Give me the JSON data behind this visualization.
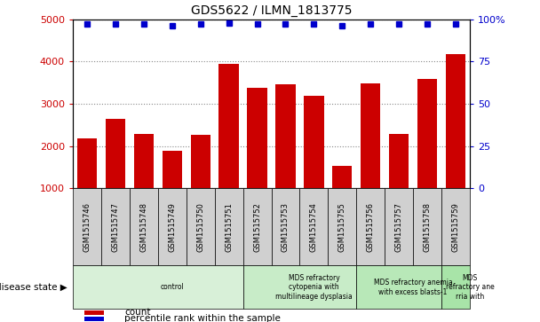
{
  "title": "GDS5622 / ILMN_1813775",
  "samples": [
    "GSM1515746",
    "GSM1515747",
    "GSM1515748",
    "GSM1515749",
    "GSM1515750",
    "GSM1515751",
    "GSM1515752",
    "GSM1515753",
    "GSM1515754",
    "GSM1515755",
    "GSM1515756",
    "GSM1515757",
    "GSM1515758",
    "GSM1515759"
  ],
  "counts": [
    2175,
    2640,
    2290,
    1890,
    2270,
    3950,
    3380,
    3460,
    3190,
    1530,
    3490,
    2280,
    3590,
    4170
  ],
  "percentile_ranks": [
    97,
    97,
    97,
    96,
    97,
    98,
    97,
    97,
    97,
    96,
    97,
    97,
    97,
    97
  ],
  "bar_color": "#cc0000",
  "dot_color": "#0000cc",
  "ylim_left": [
    1000,
    5000
  ],
  "ylim_right": [
    0,
    100
  ],
  "yticks_left": [
    1000,
    2000,
    3000,
    4000,
    5000
  ],
  "yticks_right": [
    0,
    25,
    50,
    75,
    100
  ],
  "ytick_labels_right": [
    "0",
    "25",
    "50",
    "75",
    "100%"
  ],
  "disease_groups": [
    {
      "label": "control",
      "start": 0,
      "end": 6,
      "color": "#d8f0d8"
    },
    {
      "label": "MDS refractory\ncytopenia with\nmultilineage dysplasia",
      "start": 6,
      "end": 10,
      "color": "#c8ecc8"
    },
    {
      "label": "MDS refractory anemia\nwith excess blasts-1",
      "start": 10,
      "end": 13,
      "color": "#b8e8b8"
    },
    {
      "label": "MDS\nrefractory ane\nrria with",
      "start": 13,
      "end": 14,
      "color": "#a8e4a8"
    }
  ],
  "disease_state_label": "disease state",
  "legend_count_label": "count",
  "legend_percentile_label": "percentile rank within the sample",
  "sample_box_color": "#d0d0d0",
  "grid_color": "#888888",
  "tick_label_color_left": "#cc0000",
  "tick_label_color_right": "#0000cc"
}
